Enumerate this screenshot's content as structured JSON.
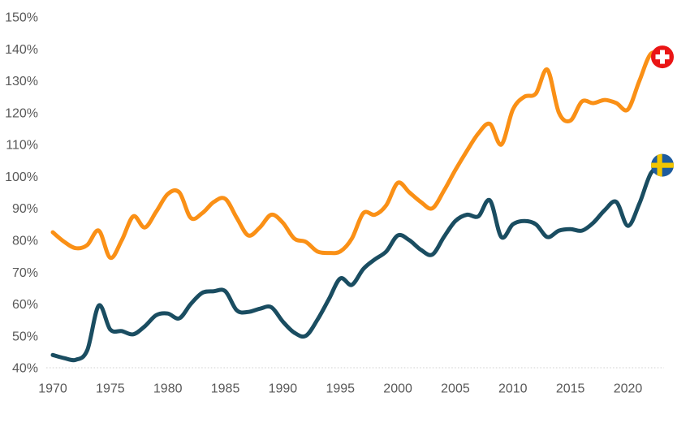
{
  "chart_data": {
    "type": "line",
    "title": "",
    "xlabel": "",
    "ylabel": "",
    "x_range": [
      1970,
      2023
    ],
    "y_range": [
      40,
      150
    ],
    "grid": false,
    "legend": "flag icons at line ends",
    "x": [
      1970,
      1971,
      1972,
      1973,
      1974,
      1975,
      1976,
      1977,
      1978,
      1979,
      1980,
      1981,
      1982,
      1983,
      1984,
      1985,
      1986,
      1987,
      1988,
      1989,
      1990,
      1991,
      1992,
      1993,
      1994,
      1995,
      1996,
      1997,
      1998,
      1999,
      2000,
      2001,
      2002,
      2003,
      2004,
      2005,
      2006,
      2007,
      2008,
      2009,
      2010,
      2011,
      2012,
      2013,
      2014,
      2015,
      2016,
      2017,
      2018,
      2019,
      2020,
      2021,
      2022,
      2023
    ],
    "series": [
      {
        "name": "Switzerland",
        "color": "#FA9016",
        "flag": {
          "type": "swiss",
          "bg": "#EA1515",
          "cross": "#FFFFFF"
        },
        "values": [
          82.5,
          79.5,
          77.5,
          78.5,
          83,
          74.5,
          80,
          87.5,
          84,
          89,
          94.5,
          95,
          87,
          88.5,
          92,
          93,
          87,
          81.5,
          84,
          88,
          85.5,
          80.5,
          79.5,
          76.5,
          76,
          76.5,
          80.5,
          88.5,
          88,
          91,
          98,
          95,
          92,
          90,
          95.5,
          102,
          108,
          113.5,
          116.5,
          110,
          121,
          125,
          126,
          133.5,
          120,
          117.5,
          123.5,
          123,
          124,
          123,
          121,
          130,
          138.5,
          137.5
        ]
      },
      {
        "name": "Sweden",
        "color": "#1A4D61",
        "flag": {
          "type": "sweden",
          "bg": "#1E5C9E",
          "cross": "#F2C500"
        },
        "values": [
          44,
          43,
          42.5,
          45.5,
          59.5,
          52,
          51.5,
          50.5,
          53,
          56.5,
          57,
          55.5,
          60,
          63.5,
          64,
          64,
          58,
          57.5,
          58.5,
          59,
          54.5,
          51,
          50,
          55,
          61.5,
          68,
          66,
          71,
          74,
          76.5,
          81.5,
          80,
          77,
          75.5,
          81,
          86,
          88,
          87.5,
          92.5,
          81,
          85,
          86,
          85,
          81,
          83,
          83.5,
          83,
          85.5,
          89.5,
          92,
          84.5,
          91.5,
          101,
          103.5
        ]
      }
    ],
    "y_ticks": [
      {
        "value": 150,
        "label": "150%"
      },
      {
        "value": 140,
        "label": "140%"
      },
      {
        "value": 130,
        "label": "130%"
      },
      {
        "value": 120,
        "label": "120%"
      },
      {
        "value": 110,
        "label": "110%"
      },
      {
        "value": 100,
        "label": "100%"
      },
      {
        "value": 90,
        "label": "90%"
      },
      {
        "value": 80,
        "label": "80%"
      },
      {
        "value": 70,
        "label": "70%"
      },
      {
        "value": 60,
        "label": "60%"
      },
      {
        "value": 50,
        "label": "50%"
      },
      {
        "value": 40,
        "label": "40%"
      }
    ],
    "x_ticks": [
      {
        "value": 1970,
        "label": "1970"
      },
      {
        "value": 1975,
        "label": "1975"
      },
      {
        "value": 1980,
        "label": "1980"
      },
      {
        "value": 1985,
        "label": "1985"
      },
      {
        "value": 1990,
        "label": "1990"
      },
      {
        "value": 1995,
        "label": "1995"
      },
      {
        "value": 2000,
        "label": "2000"
      },
      {
        "value": 2005,
        "label": "2005"
      },
      {
        "value": 2010,
        "label": "2010"
      },
      {
        "value": 2015,
        "label": "2015"
      },
      {
        "value": 2020,
        "label": "2020"
      }
    ],
    "style": {
      "tick_color": "#595959",
      "baseline_color": "#D9D9D9",
      "baseline_style": "dotted",
      "line_width": 5
    }
  }
}
